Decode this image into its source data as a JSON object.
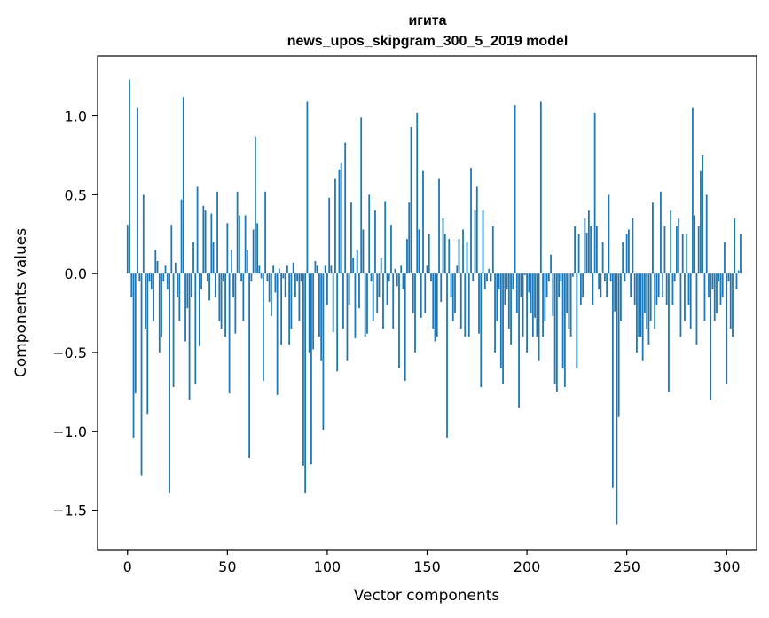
{
  "chart_data": {
    "type": "bar",
    "title": "игита",
    "subtitle": "news_upos_skipgram_300_5_2019 model",
    "xlabel": "Vector components",
    "ylabel": "Components values",
    "xlim": [
      -15,
      315
    ],
    "ylim": [
      -1.75,
      1.38
    ],
    "xticks": [
      0,
      50,
      100,
      150,
      200,
      250,
      300
    ],
    "xtick_labels": [
      "0",
      "50",
      "100",
      "150",
      "200",
      "250",
      "300"
    ],
    "yticks": [
      -1.5,
      -1.0,
      -0.5,
      0.0,
      0.5,
      1.0
    ],
    "ytick_labels": [
      "−1.5",
      "−1.0",
      "−0.5",
      "0.0",
      "0.5",
      "1.0"
    ],
    "bar_color": "#1f77b4",
    "grid": false,
    "values": [
      0.31,
      1.23,
      -0.15,
      -1.04,
      -0.76,
      1.05,
      -0.05,
      -1.28,
      0.5,
      -0.35,
      -0.89,
      -0.05,
      -0.1,
      -0.3,
      0.15,
      0.08,
      -0.5,
      -0.4,
      -0.05,
      0.05,
      -0.1,
      -1.39,
      0.31,
      -0.72,
      0.07,
      -0.15,
      -0.3,
      0.47,
      1.12,
      -0.43,
      -0.22,
      -0.8,
      -0.15,
      0.2,
      -0.7,
      0.55,
      -0.46,
      -0.1,
      0.43,
      0.4,
      -0.05,
      -0.17,
      0.38,
      0.2,
      -0.15,
      0.52,
      -0.3,
      -0.35,
      -0.05,
      -0.4,
      0.32,
      -0.76,
      0.15,
      -0.15,
      -0.38,
      0.52,
      0.37,
      -0.05,
      -0.3,
      0.37,
      0.15,
      -1.17,
      -0.05,
      0.28,
      0.87,
      0.32,
      0.05,
      -0.03,
      -0.68,
      0.52,
      -0.05,
      -0.18,
      -0.27,
      0.05,
      -0.12,
      -0.77,
      0.03,
      -0.45,
      -0.03,
      -0.15,
      0.05,
      -0.45,
      -0.35,
      0.07,
      -0.15,
      -0.05,
      -0.3,
      -0.05,
      -1.22,
      -1.39,
      1.09,
      -0.5,
      -1.21,
      -0.48,
      0.08,
      0.05,
      -0.4,
      -0.55,
      -0.99,
      0.05,
      -0.2,
      0.48,
      0.05,
      -0.37,
      0.6,
      -0.62,
      0.66,
      0.7,
      -0.35,
      0.83,
      -0.55,
      -0.2,
      0.45,
      0.1,
      -0.41,
      0.15,
      -0.22,
      0.99,
      0.28,
      -0.4,
      -0.38,
      0.5,
      -0.05,
      -0.3,
      0.4,
      -0.25,
      -0.15,
      0.1,
      -0.35,
      0.46,
      -0.2,
      -0.05,
      0.31,
      -0.35,
      0.03,
      -0.08,
      -0.6,
      0.05,
      -0.1,
      -0.68,
      0.22,
      0.45,
      0.93,
      -0.25,
      -0.5,
      1.02,
      0.28,
      -0.28,
      0.65,
      -0.25,
      0.05,
      0.25,
      -0.05,
      -0.35,
      -0.43,
      -0.4,
      0.6,
      -0.18,
      0.35,
      0.25,
      -1.04,
      0.22,
      -0.15,
      -0.3,
      -0.25,
      0.05,
      0.22,
      -0.35,
      0.28,
      -0.4,
      0.2,
      -0.4,
      0.67,
      -0.05,
      0.4,
      0.55,
      -0.38,
      -0.72,
      0.4,
      -0.1,
      -0.05,
      0.03,
      -0.05,
      0.3,
      -0.5,
      -0.3,
      -0.1,
      -0.6,
      -0.7,
      -0.2,
      -0.1,
      -0.35,
      -0.45,
      -0.1,
      1.07,
      -0.25,
      -0.85,
      -0.15,
      -0.4,
      -0.01,
      -0.5,
      -0.12,
      -0.25,
      -0.4,
      -0.28,
      -0.4,
      -0.55,
      1.09,
      -0.4,
      -0.3,
      -0.15,
      -0.05,
      0.12,
      -0.27,
      -0.7,
      -0.75,
      -0.15,
      -0.05,
      -0.6,
      -0.72,
      -0.25,
      -0.35,
      -0.4,
      -0.02,
      0.3,
      -0.6,
      0.25,
      -0.2,
      -0.15,
      0.35,
      0.26,
      0.4,
      0.3,
      -0.2,
      1.02,
      0.3,
      -0.1,
      -0.15,
      0.2,
      -0.05,
      -0.15,
      0.5,
      -0.05,
      -1.36,
      -0.24,
      -1.59,
      -0.91,
      -0.3,
      0.2,
      -0.05,
      0.25,
      0.28,
      -0.15,
      0.35,
      -0.2,
      -0.5,
      -0.4,
      -0.4,
      -0.55,
      -0.25,
      -0.35,
      -0.45,
      -0.3,
      0.45,
      -0.35,
      -0.2,
      -0.15,
      0.52,
      -0.15,
      0.3,
      -0.2,
      -0.75,
      0.4,
      -0.2,
      -0.05,
      0.3,
      0.35,
      -0.4,
      0.25,
      -0.3,
      0.25,
      -0.2,
      -0.35,
      1.05,
      0.37,
      -0.45,
      0.3,
      0.65,
      0.75,
      -0.3,
      0.5,
      -0.15,
      -0.8,
      -0.1,
      -0.3,
      -0.25,
      -0.05,
      -0.2,
      -0.15,
      0.2,
      -0.7,
      -0.05,
      -0.35,
      -0.4,
      0.35,
      -0.1,
      0.02,
      0.25
    ]
  }
}
